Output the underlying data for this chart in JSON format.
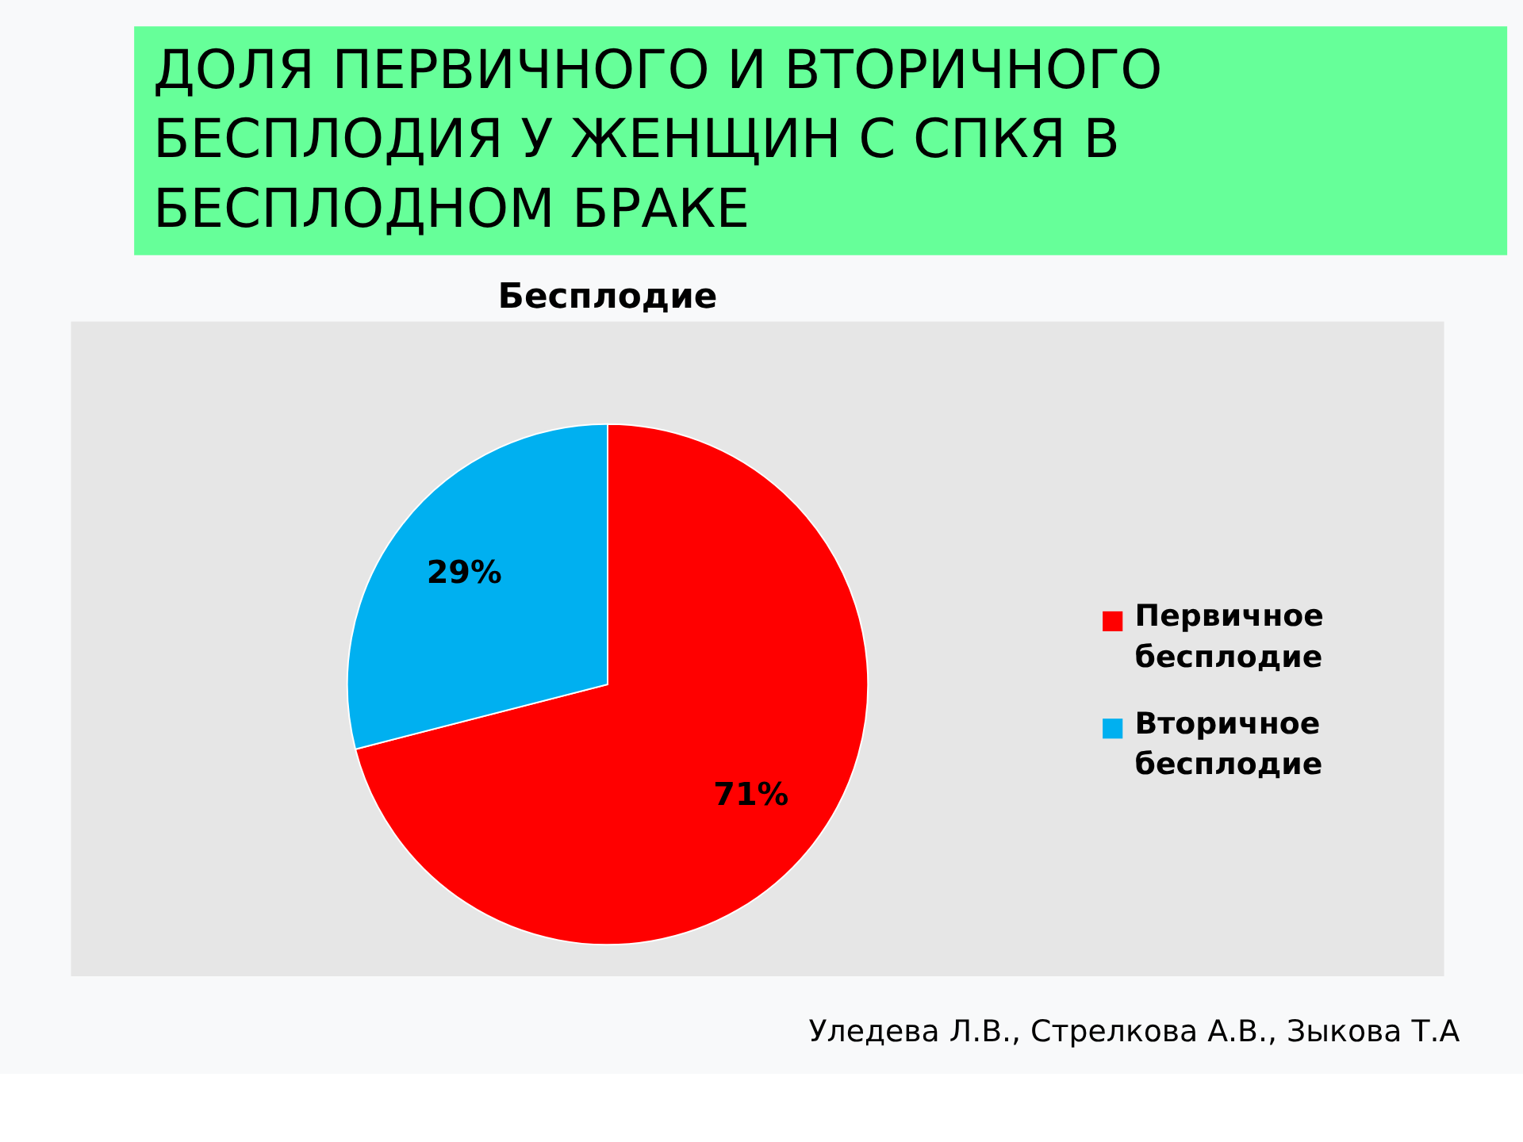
{
  "chart_data": {
    "type": "pie",
    "title": "ДОЛЯ ПЕРВИЧНОГО И ВТОРИЧНОГО БЕСПЛОДИЯ У ЖЕНЩИН С СПКЯ В БЕСПЛОДНОМ БРАКЕ",
    "subtitle": "Бесплодие",
    "categories": [
      "Первичное бесплодие",
      "Вторичное бесплодие"
    ],
    "values": [
      71,
      29
    ],
    "colors": [
      "#ff0000",
      "#00b0f0"
    ],
    "value_labels": [
      "71%",
      "29%"
    ],
    "legend": "right",
    "annotations": [
      "Уледева Л.В., Стрелкова А.В., Зыкова Т.А"
    ]
  }
}
